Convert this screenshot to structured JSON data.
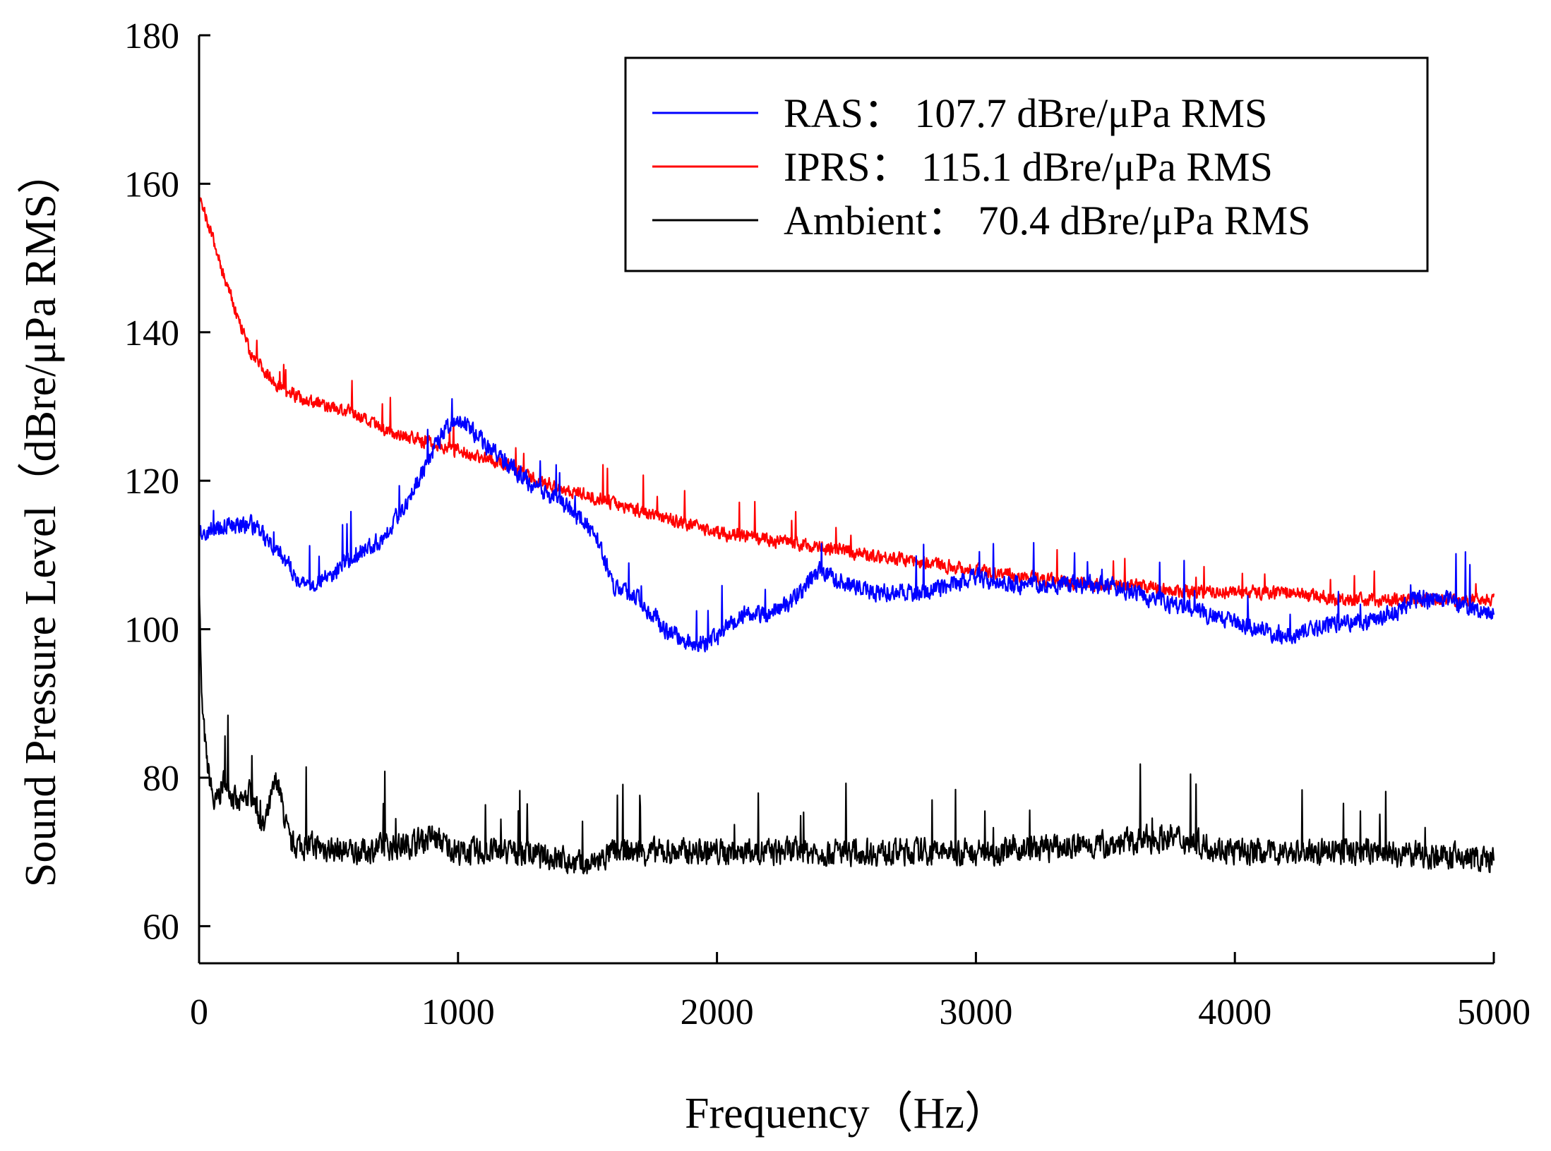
{
  "chart_data": {
    "type": "line",
    "title": "",
    "xlabel": "Frequency（Hz）",
    "ylabel": "Sound Pressure Level（dBre/μPa RMS）",
    "xlim": [
      0,
      5000
    ],
    "ylim": [
      55,
      180
    ],
    "xticks": [
      0,
      1000,
      2000,
      3000,
      4000,
      5000
    ],
    "yticks": [
      60,
      80,
      100,
      120,
      140,
      160,
      180
    ],
    "xtick_labels": [
      "0",
      "1000",
      "2000",
      "3000",
      "4000",
      "5000"
    ],
    "ytick_labels": [
      "60",
      "80",
      "100",
      "120",
      "140",
      "160",
      "180"
    ],
    "grid": false,
    "legend_position": "top-right",
    "series": [
      {
        "name": "RAS",
        "legend_label": "RAS：  107.7 dBre/μPa RMS",
        "color": "#0000ff",
        "noise": 1.6,
        "x": [
          0,
          100,
          200,
          300,
          400,
          500,
          600,
          700,
          800,
          900,
          950,
          1000,
          1050,
          1100,
          1200,
          1300,
          1400,
          1500,
          1550,
          1600,
          1700,
          1800,
          1900,
          1950,
          2000,
          2100,
          2200,
          2300,
          2350,
          2400,
          2500,
          2600,
          2700,
          2800,
          2900,
          3000,
          3100,
          3200,
          3300,
          3400,
          3500,
          3600,
          3700,
          3800,
          3900,
          4000,
          4100,
          4200,
          4300,
          4400,
          4500,
          4600,
          4700,
          4800,
          4900,
          5000
        ],
        "y": [
          113,
          114,
          114,
          111,
          106,
          107,
          110,
          112,
          117,
          124,
          127,
          128,
          127,
          125,
          122,
          119,
          117,
          114,
          111,
          106,
          104,
          100,
          98,
          98,
          99,
          102,
          102,
          104,
          106,
          108,
          106,
          105,
          105,
          105,
          106,
          107,
          106,
          106,
          106,
          106,
          106,
          105,
          104,
          103,
          102,
          101,
          100,
          99,
          100,
          101,
          101,
          102,
          104,
          104,
          103,
          102
        ]
      },
      {
        "name": "IPRS",
        "legend_label": "IPRS：  115.1 dBre/μPa RMS",
        "color": "#ff0000",
        "noise": 1.2,
        "x": [
          0,
          50,
          100,
          150,
          200,
          250,
          300,
          400,
          500,
          600,
          700,
          800,
          900,
          1000,
          1100,
          1200,
          1300,
          1400,
          1500,
          1600,
          1700,
          1800,
          1900,
          2000,
          2200,
          2400,
          2600,
          2800,
          3000,
          3200,
          3400,
          3600,
          3800,
          4000,
          4200,
          4400,
          4600,
          4800,
          5000
        ],
        "y": [
          158,
          153,
          147,
          142,
          137,
          135,
          133,
          131,
          130,
          129,
          127,
          126,
          125,
          124,
          123,
          122,
          120,
          119,
          118,
          117,
          116,
          115,
          114,
          113,
          112,
          111,
          110,
          109,
          108,
          107,
          106,
          106,
          105,
          105,
          105,
          104,
          104,
          104,
          104
        ]
      },
      {
        "name": "Ambient",
        "legend_label": "Ambient：  70.4 dBre/μPa RMS",
        "color": "#000000",
        "noise": 2.4,
        "x": [
          0,
          10,
          30,
          60,
          100,
          150,
          200,
          250,
          300,
          350,
          400,
          600,
          800,
          900,
          1000,
          1200,
          1400,
          1500,
          1600,
          2000,
          2500,
          3000,
          3500,
          3750,
          4000,
          4500,
          5000
        ],
        "y": [
          108,
          90,
          82,
          76,
          80,
          76,
          78,
          73,
          80,
          71,
          71,
          70,
          71,
          72,
          70,
          70,
          69,
          68,
          70,
          70,
          70,
          70,
          71,
          72,
          70,
          70,
          69
        ]
      }
    ]
  }
}
